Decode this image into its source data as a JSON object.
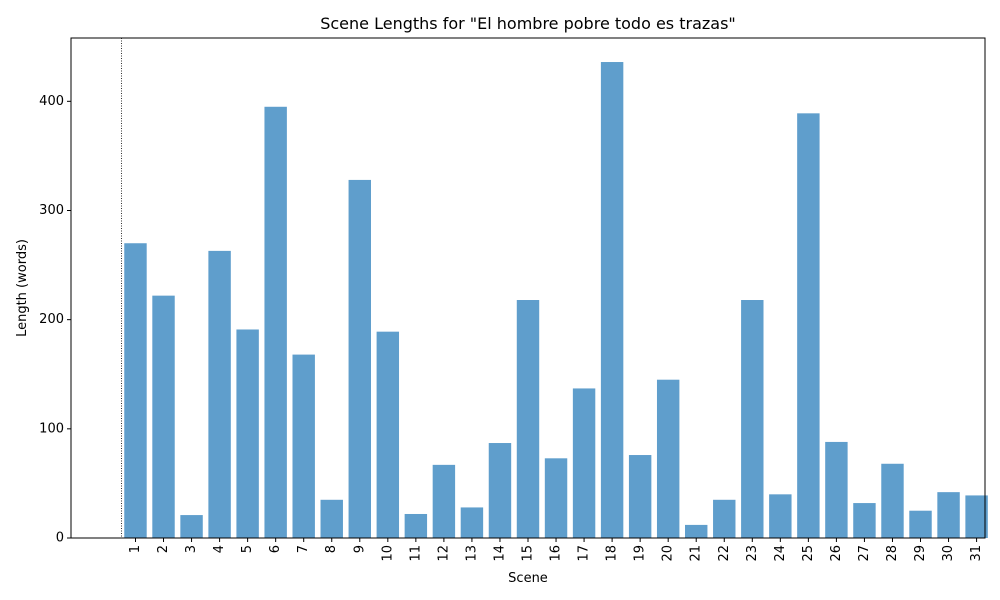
{
  "chart_data": {
    "type": "bar",
    "title": "Scene Lengths for \"El hombre pobre todo es trazas\"",
    "xlabel": "Scene",
    "ylabel": "Length (words)",
    "categories": [
      "1",
      "2",
      "3",
      "4",
      "5",
      "6",
      "7",
      "8",
      "9",
      "10",
      "11",
      "12",
      "13",
      "14",
      "15",
      "16",
      "17",
      "18",
      "19",
      "20",
      "21",
      "22",
      "23",
      "24",
      "25",
      "26",
      "27",
      "28",
      "29",
      "30",
      "31"
    ],
    "values": [
      270,
      222,
      21,
      263,
      191,
      395,
      168,
      35,
      328,
      189,
      22,
      67,
      28,
      87,
      218,
      73,
      137,
      436,
      76,
      145,
      12,
      35,
      218,
      40,
      389,
      88,
      32,
      68,
      25,
      42,
      39
    ],
    "ylim": [
      0,
      458
    ],
    "yticks": [
      0,
      100,
      200,
      300,
      400
    ],
    "bar_color": "#5f9ecc",
    "reference_line": {
      "x": 0.5,
      "style": "dotted",
      "color": "#000000"
    },
    "grid": false,
    "legend": "none"
  }
}
